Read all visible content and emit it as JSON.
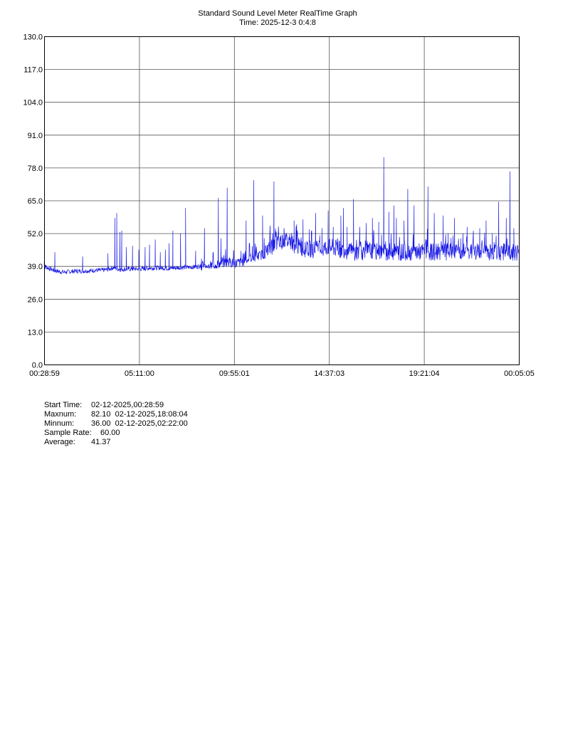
{
  "chart_data": {
    "type": "line",
    "title": "Standard Sound Level Meter RealTime Graph",
    "subtitle": "Time: 2025-12-3  0:4:8",
    "ylim": [
      0,
      130
    ],
    "yticks": [
      "0.0",
      "13.0",
      "26.0",
      "39.0",
      "52.0",
      "65.0",
      "78.0",
      "91.0",
      "104.0",
      "117.0",
      "130.0"
    ],
    "xticks": [
      "00:28:59",
      "05:11:00",
      "09:55:01",
      "14:37:03",
      "19:21:04",
      "00:05:05"
    ],
    "grid": true,
    "colors": {
      "series": "#1414e6",
      "grid": "#000000"
    },
    "series": [
      {
        "points": [
          [
            0,
            40.5
          ],
          [
            0.15,
            38.6
          ],
          [
            0.4,
            38.0
          ],
          [
            0.8,
            37.3
          ],
          [
            1.2,
            36.8
          ],
          [
            1.6,
            36.6
          ],
          [
            2.0,
            36.8
          ],
          [
            2.5,
            37.0
          ],
          [
            3.0,
            37.0
          ],
          [
            3.5,
            37.1
          ],
          [
            4.0,
            37.3
          ],
          [
            4.5,
            37.3
          ],
          [
            5.0,
            37.6
          ],
          [
            5.5,
            38.4
          ],
          [
            6.0,
            37.6
          ],
          [
            6.5,
            37.8
          ],
          [
            7.0,
            37.9
          ],
          [
            7.5,
            37.8
          ],
          [
            8.0,
            38.0
          ],
          [
            8.5,
            38.2
          ],
          [
            9.0,
            38.3
          ],
          [
            9.5,
            38.2
          ],
          [
            10.0,
            38.1
          ],
          [
            10.5,
            38.3
          ],
          [
            11.0,
            38.5
          ],
          [
            11.5,
            38.5
          ],
          [
            12.0,
            38.7
          ],
          [
            12.5,
            39.1
          ],
          [
            13.0,
            38.7
          ],
          [
            13.5,
            39.6
          ],
          [
            14.0,
            40.0
          ],
          [
            14.5,
            40.7
          ],
          [
            15.0,
            40.1
          ],
          [
            15.5,
            40.4
          ],
          [
            16.0,
            41.3
          ],
          [
            16.5,
            42.6
          ],
          [
            17.0,
            42.9
          ],
          [
            17.5,
            44.1
          ],
          [
            18.0,
            46.8
          ],
          [
            18.5,
            48.2
          ],
          [
            19.0,
            49.5
          ],
          [
            19.5,
            48.4
          ],
          [
            20.0,
            46.9
          ],
          [
            20.5,
            46.1
          ],
          [
            21.0,
            45.5
          ],
          [
            21.5,
            45.7
          ],
          [
            22.0,
            45.6
          ],
          [
            22.5,
            46.7
          ],
          [
            23.0,
            46.1
          ],
          [
            23.5,
            45.5
          ],
          [
            23.9,
            45.7
          ],
          [
            24.0,
            44.6
          ]
        ],
        "peaks": [
          [
            0.85,
            44.5
          ],
          [
            3.05,
            42.8
          ],
          [
            5.05,
            44.0
          ],
          [
            5.6,
            58.0
          ],
          [
            5.75,
            60.0
          ],
          [
            6.0,
            52.5
          ],
          [
            6.15,
            53.0
          ],
          [
            6.5,
            46.5
          ],
          [
            7.0,
            47.0
          ],
          [
            7.5,
            45.5
          ],
          [
            8.0,
            46.5
          ],
          [
            8.35,
            47.5
          ],
          [
            8.8,
            49.5
          ],
          [
            9.2,
            44.5
          ],
          [
            9.6,
            45.5
          ],
          [
            9.9,
            48.0
          ],
          [
            10.2,
            53.0
          ],
          [
            10.8,
            52.0
          ],
          [
            11.2,
            62.0
          ],
          [
            12.0,
            45.0
          ],
          [
            12.7,
            54.0
          ],
          [
            13.8,
            66.0
          ],
          [
            14.0,
            50.0
          ],
          [
            14.5,
            70.0
          ],
          [
            15.0,
            45.0
          ],
          [
            15.6,
            45.0
          ],
          [
            16.0,
            57.0
          ],
          [
            16.6,
            73.0
          ],
          [
            17.3,
            59.0
          ],
          [
            17.9,
            55.0
          ],
          [
            18.2,
            72.5
          ],
          [
            19.0,
            54.0
          ],
          [
            19.8,
            57.0
          ],
          [
            20.0,
            55.5
          ],
          [
            20.5,
            57.5
          ],
          [
            21.0,
            53.5
          ],
          [
            21.5,
            60.0
          ],
          [
            22.0,
            54.0
          ],
          [
            22.5,
            61.0
          ],
          [
            22.9,
            54.5
          ],
          [
            23.5,
            59.0
          ],
          [
            23.7,
            62.0
          ],
          [
            24.0,
            54.5
          ],
          [
            24.5,
            65.5
          ],
          [
            25.0,
            54.5
          ],
          [
            25.5,
            56.0
          ],
          [
            26.0,
            58.0
          ],
          [
            26.5,
            56.5
          ],
          [
            26.9,
            82.1
          ],
          [
            27.3,
            60.5
          ],
          [
            27.7,
            63.0
          ],
          [
            27.9,
            58.0
          ],
          [
            28.5,
            57.0
          ],
          [
            28.8,
            69.5
          ],
          [
            29.3,
            63.0
          ],
          [
            30.4,
            70.5
          ],
          [
            30.9,
            60.0
          ],
          [
            31.6,
            59.0
          ],
          [
            32.0,
            52.0
          ],
          [
            32.5,
            58.0
          ],
          [
            33.0,
            50.0
          ],
          [
            33.5,
            54.5
          ],
          [
            34.0,
            53.0
          ],
          [
            34.5,
            54.0
          ],
          [
            35.0,
            57.0
          ],
          [
            35.5,
            52.0
          ],
          [
            35.8,
            51.0
          ],
          [
            36.0,
            64.5
          ],
          [
            36.6,
            58.0
          ],
          [
            36.9,
            76.5
          ],
          [
            37.2,
            54.0
          ]
        ]
      }
    ]
  },
  "stats": [
    {
      "label": "Start Time:",
      "value": "02-12-2025,00:28:59"
    },
    {
      "label": "Maxnum:",
      "value": "82.10  02-12-2025,18:08:04"
    },
    {
      "label": "Minnum:",
      "value": "36.00  02-12-2025,02:22:00"
    },
    {
      "label": "Sample Rate:",
      "value": "60.00"
    },
    {
      "label": "Average:",
      "value": "41.37"
    }
  ]
}
